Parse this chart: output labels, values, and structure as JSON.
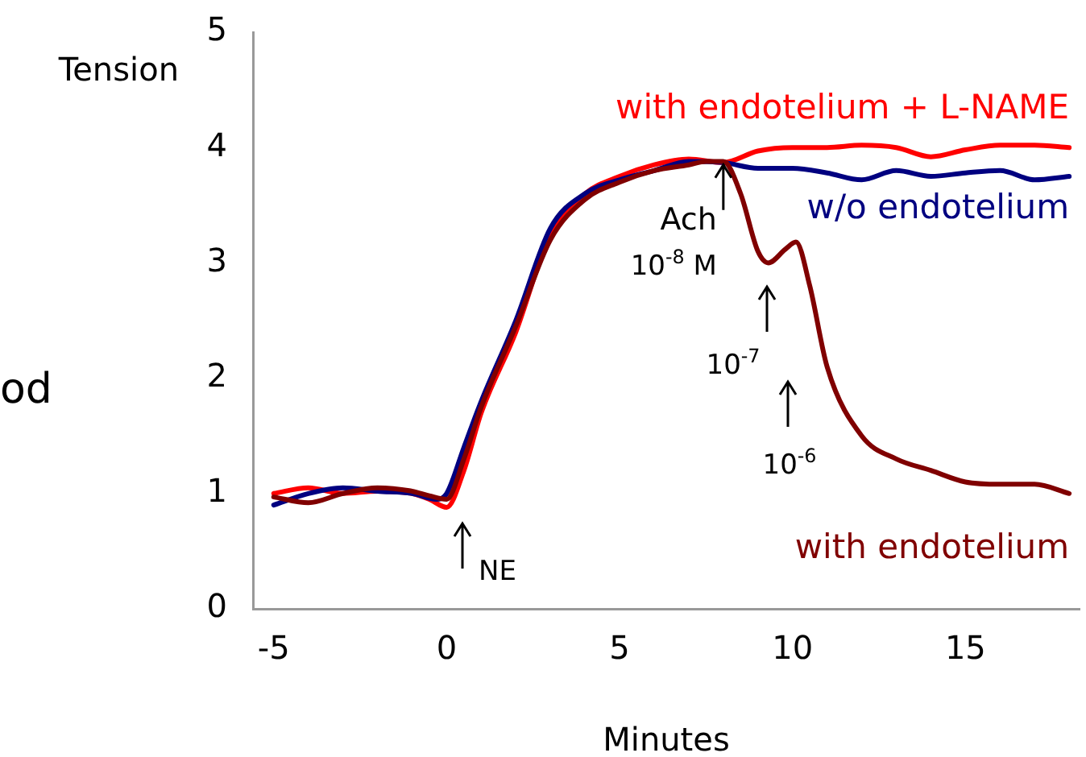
{
  "chart_data": {
    "type": "line",
    "xlabel": "Minutes",
    "ylabel": "Tension",
    "xlim": [
      -5.6,
      18.3
    ],
    "xticks": [
      -5,
      0,
      5,
      10,
      15
    ],
    "ylim": [
      0,
      5
    ],
    "yticks": [
      0,
      1,
      2,
      3,
      4,
      5
    ],
    "grid": false,
    "legend": false,
    "marker": "none",
    "line_style": "solid",
    "series": [
      {
        "name": "with endotelium",
        "color": "#800000",
        "x": [
          -5,
          -4,
          -3,
          -2,
          -1,
          -0.5,
          0,
          0.5,
          1,
          2,
          3,
          4,
          5,
          6,
          7,
          7.5,
          8,
          8.5,
          9,
          9.3,
          9.8,
          10.1,
          10.5,
          11,
          12,
          13,
          14,
          15,
          16,
          17,
          18
        ],
        "values": [
          0.97,
          0.92,
          1.0,
          1.05,
          1.02,
          0.98,
          0.95,
          1.3,
          1.75,
          2.45,
          3.2,
          3.55,
          3.7,
          3.8,
          3.85,
          3.88,
          3.88,
          3.6,
          3.1,
          3.0,
          3.12,
          3.18,
          2.8,
          2.1,
          1.5,
          1.3,
          1.2,
          1.1,
          1.08,
          1.08,
          1.0
        ]
      },
      {
        "name": "w/o endotelium",
        "color": "#000080",
        "x": [
          -5,
          -4,
          -3,
          -2,
          -1,
          -0.3,
          0,
          0.5,
          1,
          2,
          3,
          4,
          5,
          6,
          7,
          8,
          9,
          10,
          11,
          12,
          13,
          14,
          15,
          16,
          17,
          18
        ],
        "values": [
          0.9,
          1.0,
          1.05,
          1.02,
          1.0,
          0.95,
          1.0,
          1.4,
          1.8,
          2.5,
          3.3,
          3.6,
          3.72,
          3.8,
          3.88,
          3.87,
          3.82,
          3.82,
          3.78,
          3.72,
          3.8,
          3.75,
          3.78,
          3.8,
          3.72,
          3.75
        ]
      },
      {
        "name": "with endotelium + L-NAME",
        "color": "#ff0000",
        "x": [
          -5,
          -4,
          -3,
          -2,
          -1,
          -0.5,
          0,
          0.5,
          1,
          2,
          3,
          4,
          5,
          6,
          7,
          8,
          9,
          10,
          11,
          12,
          13,
          14,
          15,
          16,
          17,
          18
        ],
        "values": [
          1.0,
          1.05,
          1.0,
          1.02,
          1.0,
          0.95,
          0.88,
          1.2,
          1.7,
          2.4,
          3.25,
          3.6,
          3.75,
          3.85,
          3.9,
          3.87,
          3.97,
          4.0,
          4.0,
          4.02,
          4.0,
          3.92,
          3.98,
          4.02,
          4.02,
          4.0
        ]
      }
    ],
    "annotations": [
      "NE",
      {
        "text": "Ach\n10$^{-8}$ M",
        "x": 8,
        "y": 3.85
      },
      "10$^{-7}$",
      "10$^{-6}$",
      "od"
    ]
  }
}
